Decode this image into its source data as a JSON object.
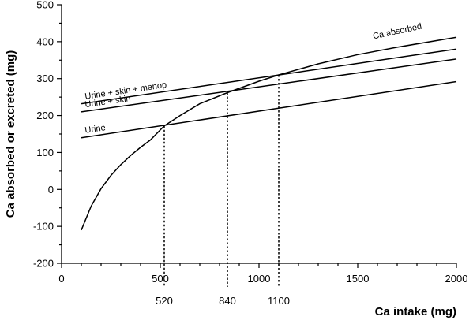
{
  "chart_data": {
    "type": "line",
    "xlabel": "Ca intake (mg)",
    "ylabel": "Ca absorbed or excreted (mg)",
    "xlim": [
      0,
      2000
    ],
    "ylim": [
      -200,
      500
    ],
    "xticks": [
      0,
      500,
      1000,
      1500,
      2000
    ],
    "yticks": [
      -200,
      -100,
      0,
      100,
      200,
      300,
      400,
      500
    ],
    "grid": false,
    "series": [
      {
        "name": "Ca absorbed",
        "x": [
          100,
          150,
          200,
          250,
          300,
          350,
          400,
          450,
          520,
          600,
          700,
          840,
          1000,
          1100,
          1300,
          1500,
          1700,
          2000
        ],
        "y": [
          -110,
          -45,
          2,
          38,
          67,
          92,
          114,
          134,
          172,
          200,
          232,
          262,
          293,
          310,
          340,
          365,
          385,
          412
        ]
      },
      {
        "name": "Urine + skin + menop",
        "x": [
          100,
          2000
        ],
        "y": [
          232,
          380
        ]
      },
      {
        "name": "Urine + skin",
        "x": [
          100,
          2000
        ],
        "y": [
          210,
          353
        ]
      },
      {
        "name": "Urine",
        "x": [
          100,
          2000
        ],
        "y": [
          140,
          292
        ]
      }
    ],
    "annotations": [
      {
        "x": 520,
        "y": 172,
        "label": "520"
      },
      {
        "x": 840,
        "y": 262,
        "label": "840"
      },
      {
        "x": 1100,
        "y": 310,
        "label": "1100"
      }
    ]
  }
}
